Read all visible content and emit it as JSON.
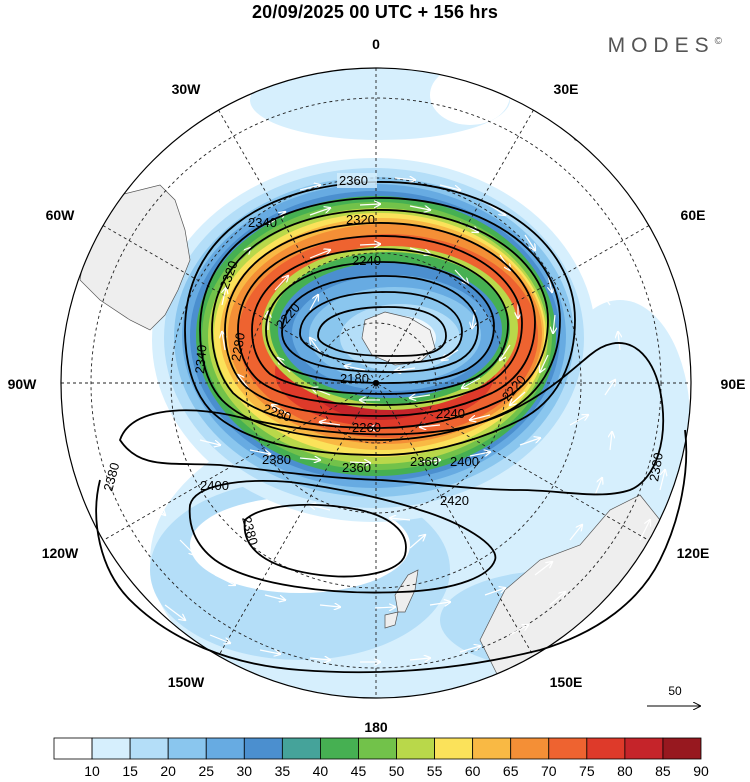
{
  "header": {
    "title": "20/09/2025  00 UTC  + 156 hrs",
    "brand": "MODES",
    "brand_mark": "©"
  },
  "map": {
    "projection": "south-polar-stereographic",
    "longitude_labels": {
      "top": "0",
      "top_right": "30E",
      "right_upper": "60E",
      "right": "90E",
      "right_lower": "120E",
      "bottom_right": "150E",
      "bottom": "180",
      "bottom_left": "150W",
      "left_lower": "120W",
      "left": "90W",
      "left_upper": "60W",
      "top_left": "30W"
    },
    "contour_labels": [
      "2360",
      "2340",
      "2320",
      "2240",
      "2320",
      "2280",
      "2340",
      "2220",
      "2180",
      "2280",
      "2260",
      "2240",
      "2220",
      "2380",
      "2380",
      "2360",
      "2360",
      "2400",
      "2400",
      "2420",
      "2380",
      "2380"
    ],
    "wind_reference": {
      "value": "50"
    }
  },
  "colorbar": {
    "levels": [
      "10",
      "15",
      "20",
      "25",
      "30",
      "35",
      "40",
      "45",
      "50",
      "55",
      "60",
      "65",
      "70",
      "75",
      "80",
      "85",
      "90"
    ],
    "colors": [
      "#ffffff",
      "#d6effd",
      "#b4def8",
      "#8ac6ee",
      "#67abe2",
      "#4b8fcf",
      "#45a39a",
      "#46b052",
      "#72c24a",
      "#b9d84a",
      "#fbe25a",
      "#f9b944",
      "#f48f36",
      "#ee6330",
      "#de3a2a",
      "#c5242a",
      "#97181f"
    ]
  }
}
